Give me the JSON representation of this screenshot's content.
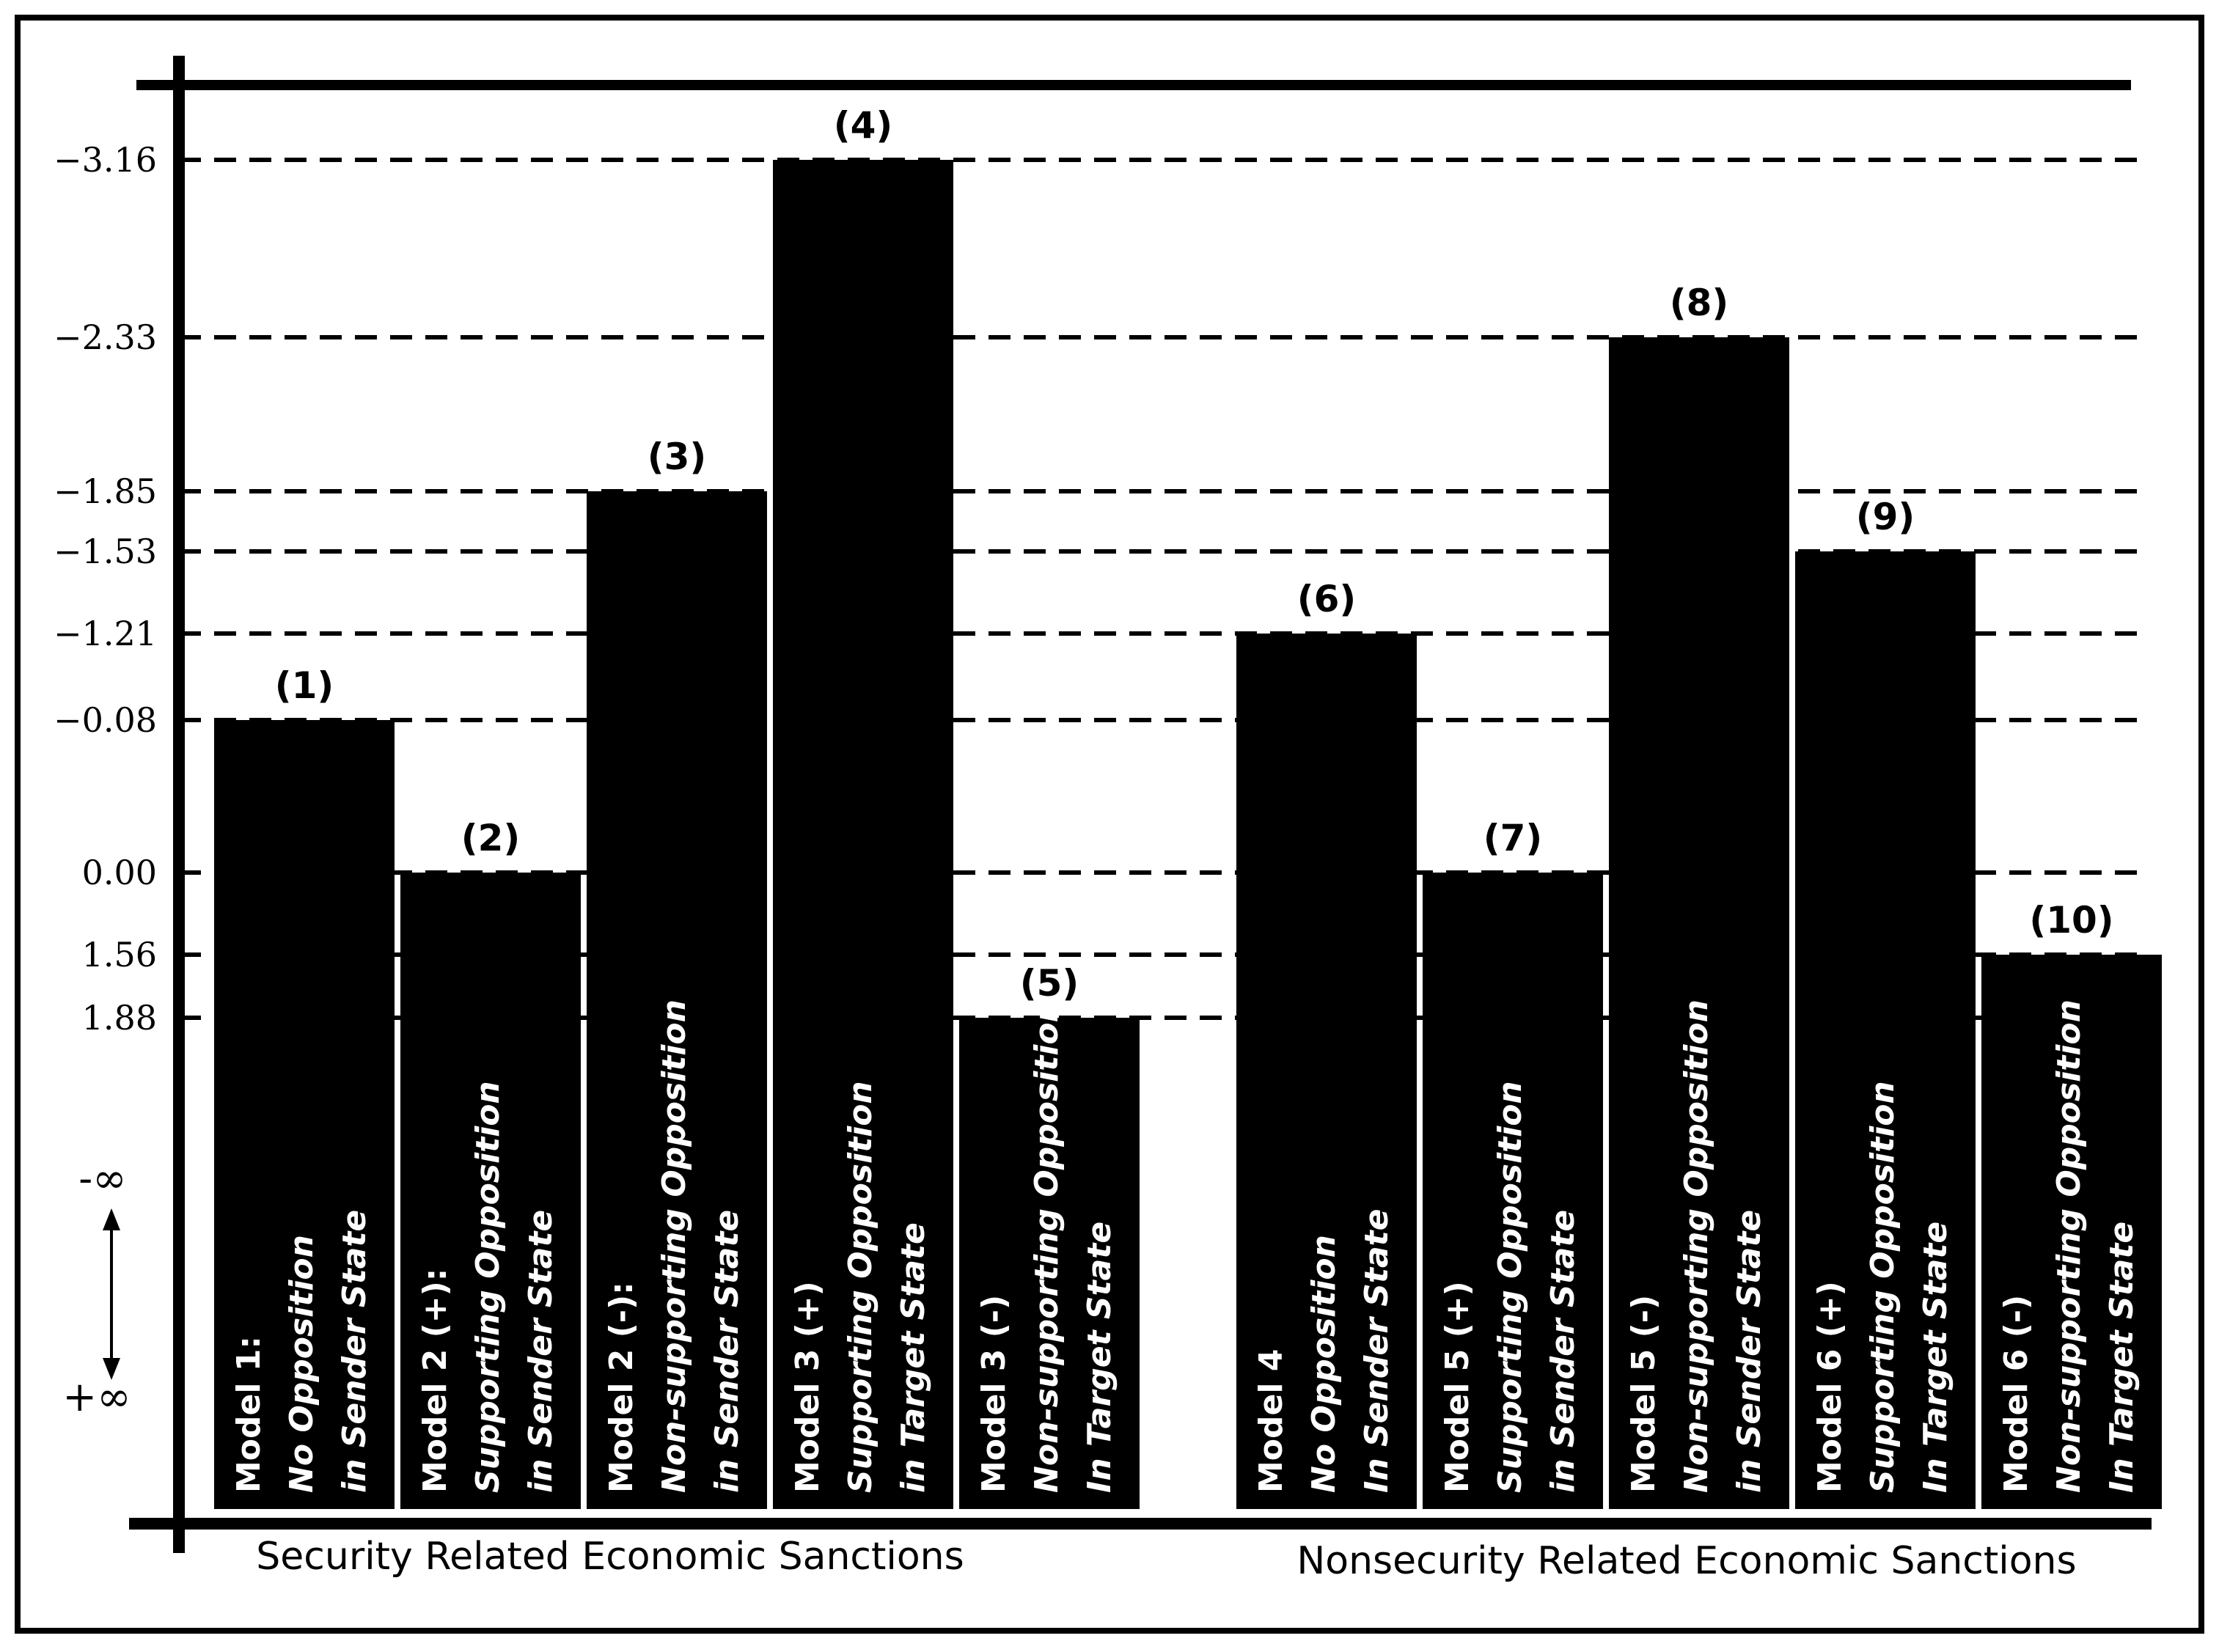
{
  "chart_data": {
    "type": "bar",
    "y_axis": {
      "tick_labels": [
        "−3.16",
        "−2.33",
        "−1.85",
        "−1.53",
        "−1.21",
        "−0.08",
        "0.00",
        "1.56",
        "1.88"
      ],
      "tick_values": [
        -3.16,
        -2.33,
        -1.85,
        -1.53,
        -1.21,
        -0.08,
        0.0,
        1.56,
        1.88
      ],
      "direction_top": "-∞",
      "direction_bottom": "+∞",
      "grid": true
    },
    "groups": [
      {
        "label": "Security Related Economic Sanctions",
        "bars": [
          {
            "number": "(1)",
            "value": -0.08,
            "lines": [
              "Model 1:",
              "No Opposition",
              "in Sender State"
            ]
          },
          {
            "number": "(2)",
            "value": 0.0,
            "lines": [
              "Model 2 (+):",
              "Supporting Opposition",
              "in Sender State"
            ]
          },
          {
            "number": "(3)",
            "value": -1.85,
            "lines": [
              "Model 2 (-):",
              "Non-supporting Opposition",
              "in Sender State"
            ]
          },
          {
            "number": "(4)",
            "value": -3.16,
            "lines": [
              "Model 3 (+)",
              "Supporting Opposition",
              "in Target State"
            ]
          },
          {
            "number": "(5)",
            "value": 1.88,
            "lines": [
              "Model 3 (-)",
              "Non-supporting Opposition",
              "In Target State"
            ]
          }
        ]
      },
      {
        "label": "Nonsecurity Related Economic Sanctions",
        "bars": [
          {
            "number": "(6)",
            "value": -1.21,
            "lines": [
              "Model 4",
              "No Opposition",
              "In Sender State"
            ]
          },
          {
            "number": "(7)",
            "value": 0.0,
            "lines": [
              "Model 5 (+)",
              "Supporting Opposition",
              "in Sender State"
            ]
          },
          {
            "number": "(8)",
            "value": -2.33,
            "lines": [
              "Model 5 (-)",
              "Non-supporting Opposition",
              "in Sender State"
            ]
          },
          {
            "number": "(9)",
            "value": -1.53,
            "lines": [
              "Model 6 (+)",
              "Supporting Opposition",
              "In Target State"
            ]
          },
          {
            "number": "(10)",
            "value": 1.56,
            "lines": [
              "Model 6 (-)",
              "Non-supporting Opposition",
              "In Target State"
            ]
          }
        ]
      }
    ],
    "colors": {
      "bar": "#000000",
      "bar_text": "#ffffff",
      "grid": "#000000",
      "background": "#ffffff"
    }
  }
}
